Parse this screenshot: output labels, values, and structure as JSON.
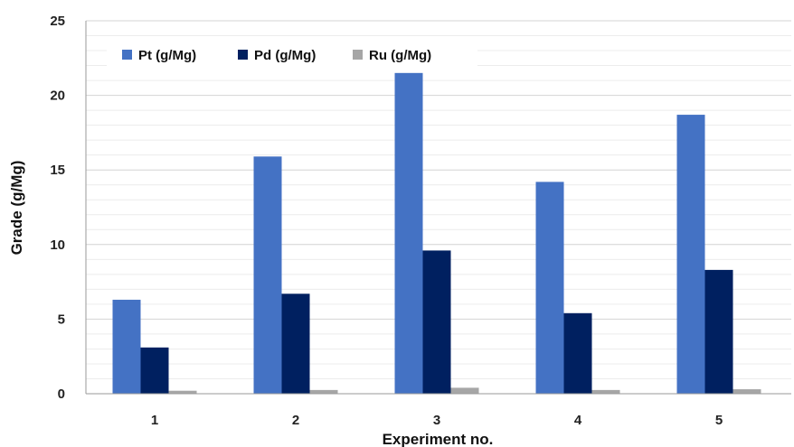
{
  "chart_data": {
    "type": "bar",
    "title": "",
    "xlabel": "Experiment no.",
    "ylabel": "Grade (g/Mg)",
    "categories": [
      "1",
      "2",
      "3",
      "4",
      "5"
    ],
    "series": [
      {
        "name": "Pt (g/Mg)",
        "color": "#4472c4",
        "values": [
          6.3,
          15.9,
          21.5,
          14.2,
          18.7
        ]
      },
      {
        "name": "Pd (g/Mg)",
        "color": "#002060",
        "values": [
          3.1,
          6.7,
          9.6,
          5.4,
          8.3
        ]
      },
      {
        "name": "Ru (g/Mg)",
        "color": "#a6a6a6",
        "values": [
          0.2,
          0.25,
          0.4,
          0.25,
          0.3
        ]
      }
    ],
    "ylim": [
      0,
      25
    ],
    "yticks": [
      "0",
      "5",
      "10",
      "15",
      "20",
      "25"
    ],
    "grid": true,
    "legend": "top-left"
  }
}
